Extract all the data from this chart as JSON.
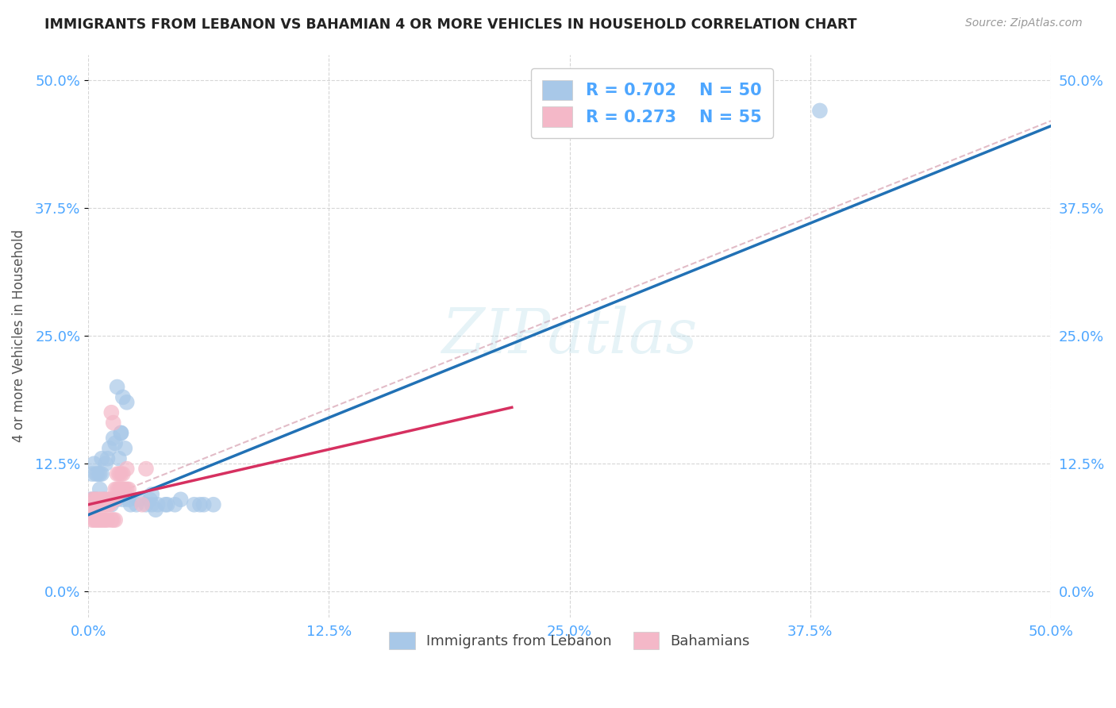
{
  "title": "IMMIGRANTS FROM LEBANON VS BAHAMIAN 4 OR MORE VEHICLES IN HOUSEHOLD CORRELATION CHART",
  "source": "Source: ZipAtlas.com",
  "tick_color": "#4da6ff",
  "ylabel": "4 or more Vehicles in Household",
  "xlim": [
    0.0,
    0.5
  ],
  "ylim": [
    -0.025,
    0.525
  ],
  "xtick_vals": [
    0.0,
    0.125,
    0.25,
    0.375,
    0.5
  ],
  "ytick_vals": [
    0.0,
    0.125,
    0.25,
    0.375,
    0.5
  ],
  "blue_color": "#a8c8e8",
  "pink_color": "#f4b8c8",
  "blue_line_color": "#2171b5",
  "pink_line_color": "#d63060",
  "pink_dash_color": "#d6a0b0",
  "legend_blue_R": "R = 0.702",
  "legend_blue_N": "N = 50",
  "legend_pink_R": "R = 0.273",
  "legend_pink_N": "N = 55",
  "legend_label_blue": "Immigrants from Lebanon",
  "legend_label_pink": "Bahamians",
  "legend_text_color": "#333333",
  "legend_value_color": "#4da6ff",
  "watermark": "ZIPatlas",
  "blue_scatter": [
    [
      0.001,
      0.09
    ],
    [
      0.002,
      0.09
    ],
    [
      0.003,
      0.085
    ],
    [
      0.003,
      0.09
    ],
    [
      0.004,
      0.09
    ],
    [
      0.005,
      0.088
    ],
    [
      0.005,
      0.085
    ],
    [
      0.006,
      0.1
    ],
    [
      0.007,
      0.13
    ],
    [
      0.008,
      0.09
    ],
    [
      0.009,
      0.125
    ],
    [
      0.01,
      0.13
    ],
    [
      0.011,
      0.14
    ],
    [
      0.012,
      0.085
    ],
    [
      0.013,
      0.15
    ],
    [
      0.014,
      0.145
    ],
    [
      0.015,
      0.09
    ],
    [
      0.016,
      0.13
    ],
    [
      0.017,
      0.155
    ],
    [
      0.018,
      0.09
    ],
    [
      0.019,
      0.14
    ],
    [
      0.02,
      0.185
    ],
    [
      0.021,
      0.09
    ],
    [
      0.022,
      0.085
    ],
    [
      0.025,
      0.085
    ],
    [
      0.026,
      0.09
    ],
    [
      0.03,
      0.085
    ],
    [
      0.032,
      0.09
    ],
    [
      0.033,
      0.095
    ],
    [
      0.035,
      0.08
    ],
    [
      0.04,
      0.085
    ],
    [
      0.041,
      0.085
    ],
    [
      0.045,
      0.085
    ],
    [
      0.048,
      0.09
    ],
    [
      0.055,
      0.085
    ],
    [
      0.058,
      0.085
    ],
    [
      0.06,
      0.085
    ],
    [
      0.065,
      0.085
    ],
    [
      0.002,
      0.115
    ],
    [
      0.003,
      0.125
    ],
    [
      0.004,
      0.115
    ],
    [
      0.005,
      0.115
    ],
    [
      0.006,
      0.115
    ],
    [
      0.007,
      0.115
    ],
    [
      0.015,
      0.2
    ],
    [
      0.017,
      0.155
    ],
    [
      0.018,
      0.19
    ],
    [
      0.033,
      0.085
    ],
    [
      0.036,
      0.085
    ],
    [
      0.38,
      0.47
    ]
  ],
  "pink_scatter": [
    [
      0.001,
      0.085
    ],
    [
      0.002,
      0.085
    ],
    [
      0.002,
      0.09
    ],
    [
      0.003,
      0.085
    ],
    [
      0.003,
      0.09
    ],
    [
      0.004,
      0.085
    ],
    [
      0.004,
      0.09
    ],
    [
      0.005,
      0.085
    ],
    [
      0.005,
      0.09
    ],
    [
      0.006,
      0.085
    ],
    [
      0.006,
      0.09
    ],
    [
      0.007,
      0.085
    ],
    [
      0.007,
      0.09
    ],
    [
      0.008,
      0.085
    ],
    [
      0.008,
      0.09
    ],
    [
      0.009,
      0.085
    ],
    [
      0.009,
      0.09
    ],
    [
      0.01,
      0.085
    ],
    [
      0.01,
      0.09
    ],
    [
      0.011,
      0.085
    ],
    [
      0.011,
      0.09
    ],
    [
      0.012,
      0.09
    ],
    [
      0.013,
      0.09
    ],
    [
      0.014,
      0.09
    ],
    [
      0.014,
      0.1
    ],
    [
      0.015,
      0.1
    ],
    [
      0.016,
      0.1
    ],
    [
      0.017,
      0.1
    ],
    [
      0.018,
      0.1
    ],
    [
      0.019,
      0.1
    ],
    [
      0.02,
      0.1
    ],
    [
      0.021,
      0.1
    ],
    [
      0.001,
      0.075
    ],
    [
      0.002,
      0.075
    ],
    [
      0.002,
      0.07
    ],
    [
      0.003,
      0.07
    ],
    [
      0.004,
      0.07
    ],
    [
      0.005,
      0.07
    ],
    [
      0.006,
      0.07
    ],
    [
      0.007,
      0.07
    ],
    [
      0.008,
      0.07
    ],
    [
      0.009,
      0.07
    ],
    [
      0.01,
      0.07
    ],
    [
      0.012,
      0.07
    ],
    [
      0.013,
      0.07
    ],
    [
      0.014,
      0.07
    ],
    [
      0.012,
      0.175
    ],
    [
      0.013,
      0.165
    ],
    [
      0.015,
      0.115
    ],
    [
      0.016,
      0.115
    ],
    [
      0.017,
      0.115
    ],
    [
      0.018,
      0.115
    ],
    [
      0.02,
      0.12
    ],
    [
      0.028,
      0.085
    ],
    [
      0.03,
      0.12
    ]
  ]
}
